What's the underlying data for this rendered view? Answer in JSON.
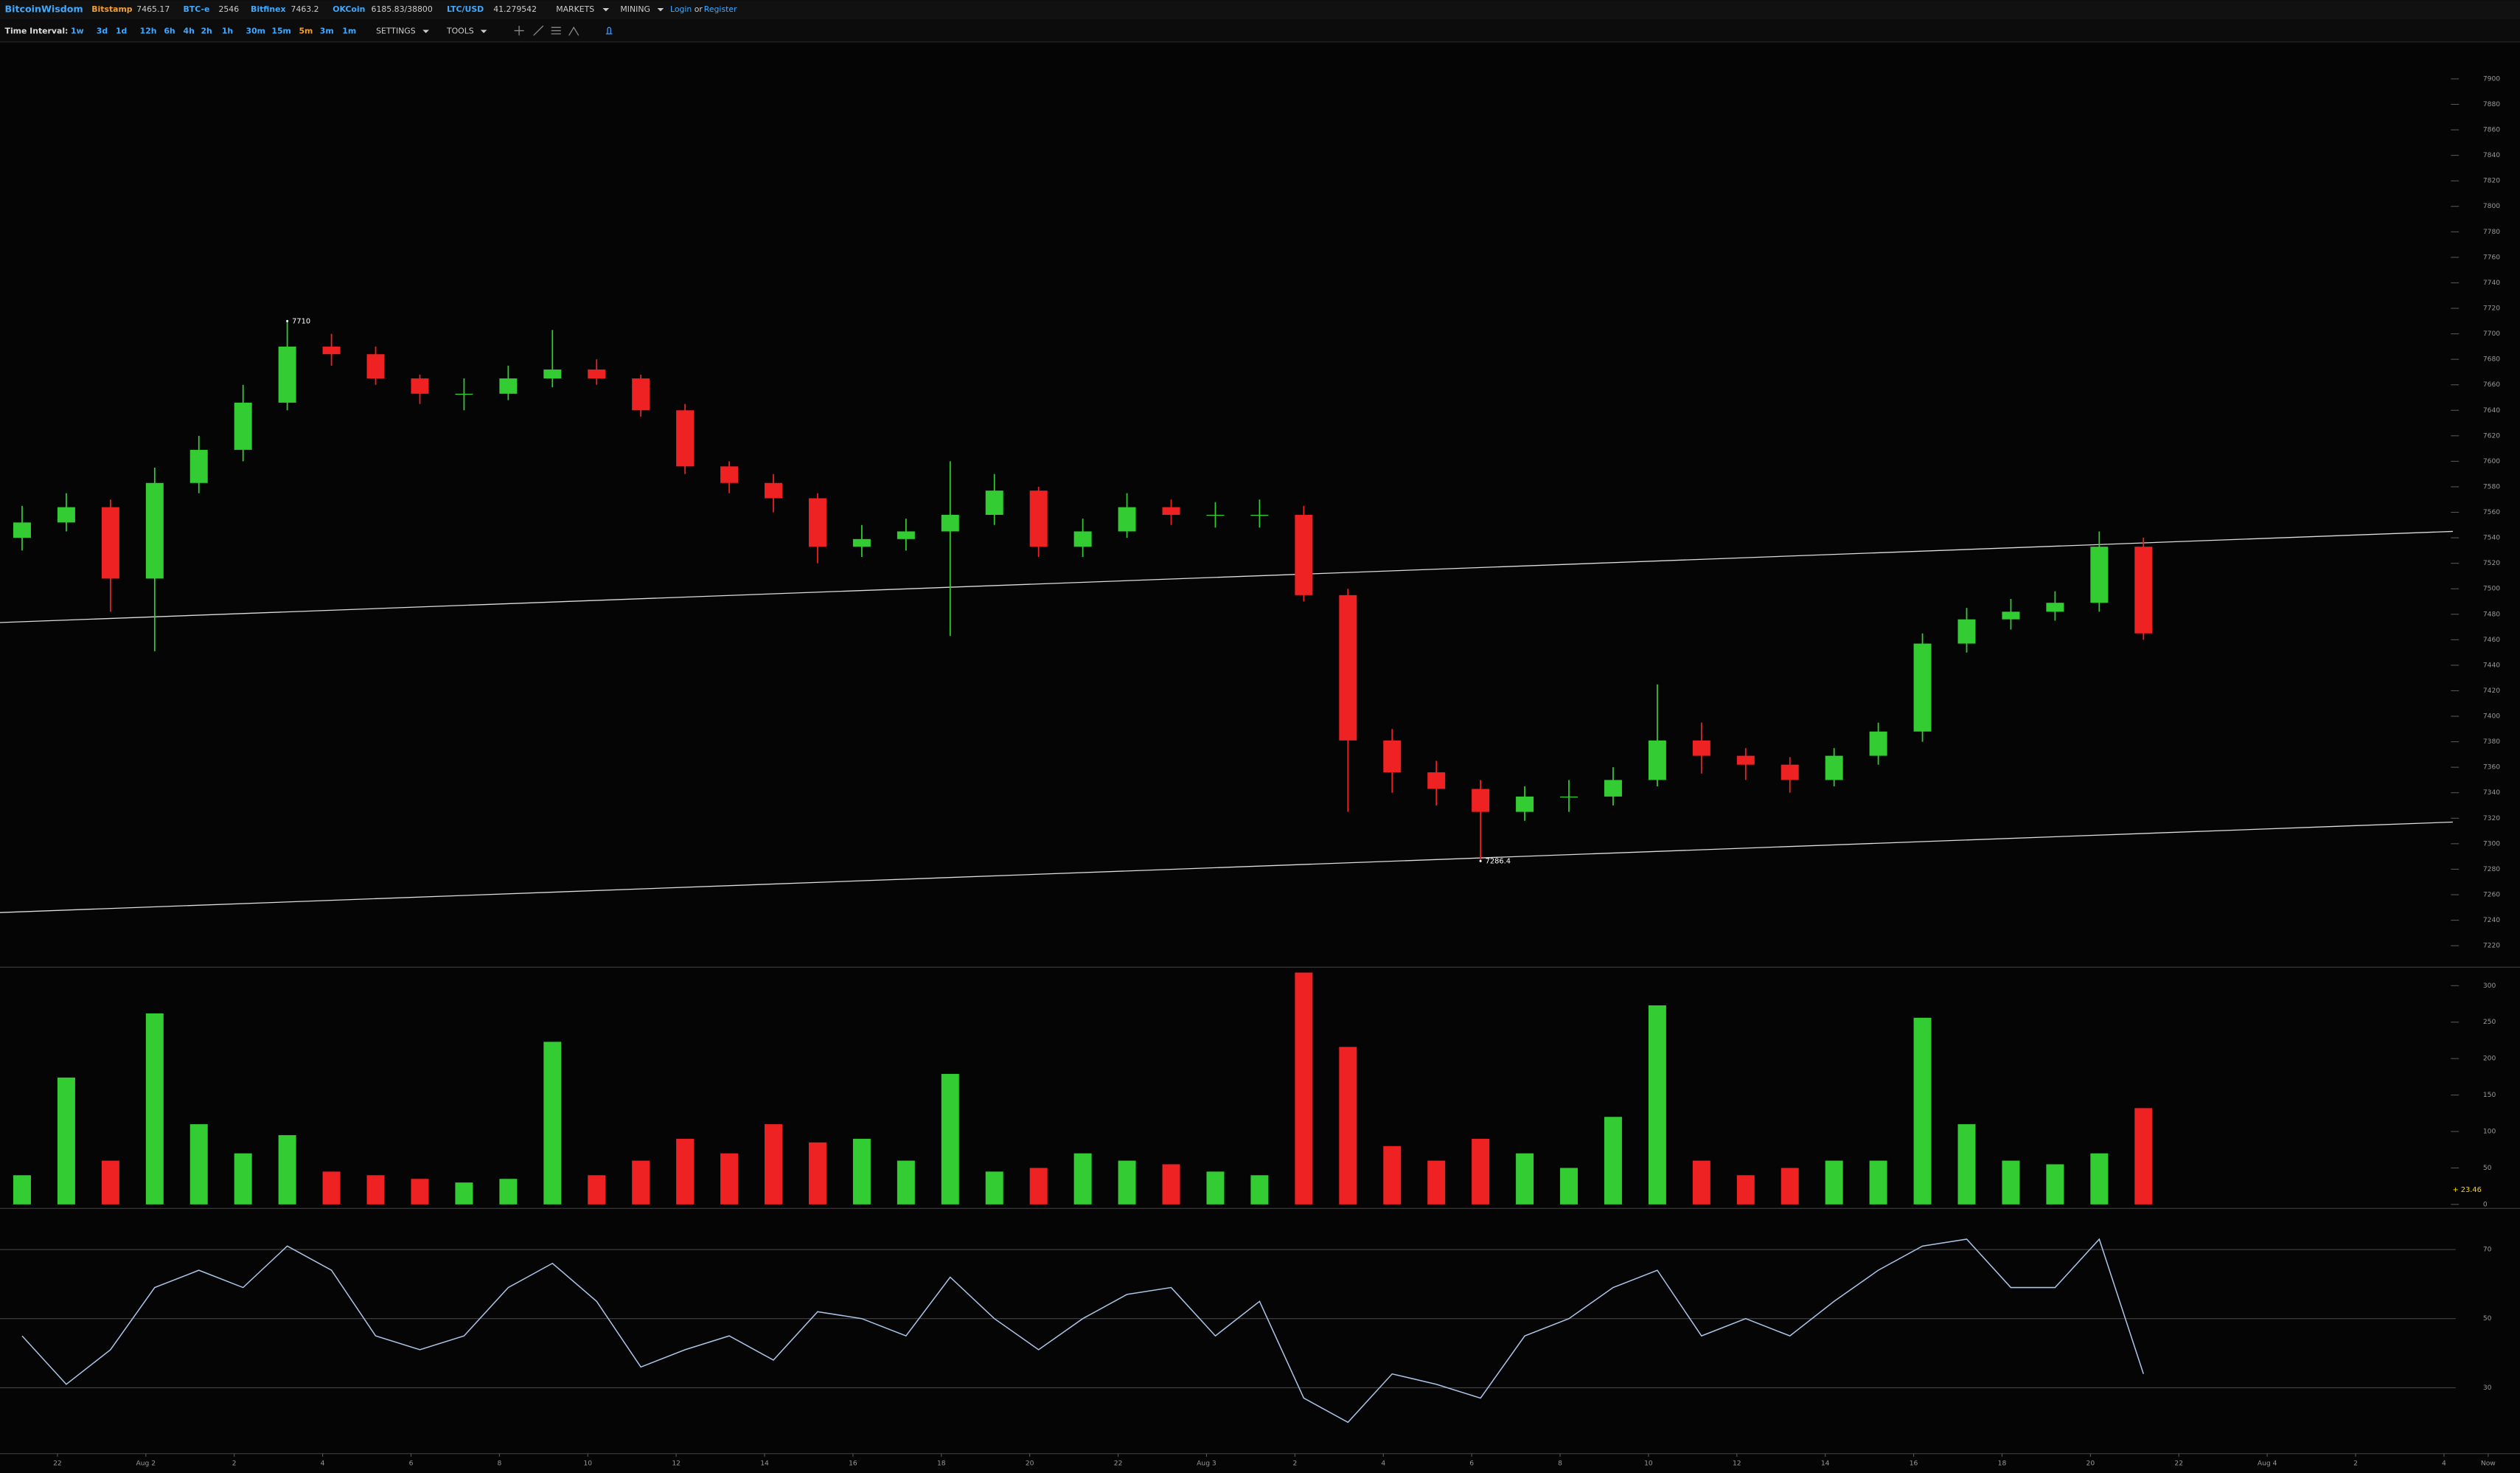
{
  "header": {
    "brand": "BitcoinWisdom",
    "tickers": [
      {
        "name": "Bitstamp",
        "price": "7465.17"
      },
      {
        "name": "BTC-e",
        "price": "2546"
      },
      {
        "name": "Bitfinex",
        "price": "7463.2"
      },
      {
        "name": "OKCoin",
        "price": "6185.83/38800"
      },
      {
        "name": "LTC/USD",
        "price": "41.279542"
      }
    ],
    "menu": [
      "MARKETS",
      "MINING"
    ],
    "login": "Login",
    "or": "or",
    "register": "Register"
  },
  "toolbar": {
    "label": "Time Interval:",
    "intervals": [
      "1w",
      "3d",
      "1d",
      "12h",
      "6h",
      "4h",
      "2h",
      "1h",
      "30m",
      "15m",
      "5m",
      "3m",
      "1m"
    ],
    "active": "5m",
    "settings": "SETTINGS",
    "tools": "TOOLS"
  },
  "chart_data": [
    {
      "type": "candlestick",
      "x": [
        0.5,
        1.5,
        2.5,
        3.5,
        4.5,
        5.5,
        6.5,
        7.5,
        8.5,
        9.5,
        10.5,
        11.5,
        12.5,
        13.5,
        14.5,
        15.5,
        16.5,
        17.5,
        18.5,
        19.5,
        20.5,
        21.5,
        22.5,
        23.5,
        24.5,
        25.5,
        26.5,
        27.5,
        28.5,
        29.5,
        30.5,
        31.5,
        32.5,
        33.5,
        34.5,
        35.5,
        36.5,
        37.5,
        38.5,
        39.5,
        40.5,
        41.5,
        42.5,
        43.5,
        44.5,
        45.5,
        46.5,
        47.5,
        48.5
      ],
      "open": [
        7540,
        7552,
        7564,
        7508,
        7583,
        7609,
        7646,
        7690,
        7684,
        7665,
        7653,
        7653,
        7665,
        7672,
        7665,
        7640,
        7596,
        7583,
        7571,
        7533,
        7539,
        7545,
        7558,
        7577,
        7533,
        7545,
        7564,
        7558,
        7558,
        7558,
        7495,
        7381,
        7356,
        7343,
        7325,
        7337,
        7337,
        7350,
        7381,
        7369,
        7362,
        7350,
        7369,
        7388,
        7457,
        7476,
        7482,
        7489,
        7533
      ],
      "high": [
        7565,
        7575,
        7570,
        7595,
        7620,
        7660,
        7710,
        7700,
        7690,
        7668,
        7665,
        7675,
        7703,
        7680,
        7668,
        7645,
        7600,
        7590,
        7575,
        7550,
        7555,
        7600,
        7590,
        7580,
        7555,
        7575,
        7570,
        7568,
        7570,
        7565,
        7500,
        7390,
        7365,
        7350,
        7345,
        7350,
        7360,
        7425,
        7395,
        7375,
        7368,
        7375,
        7395,
        7465,
        7485,
        7492,
        7498,
        7545,
        7540
      ],
      "low": [
        7530,
        7545,
        7482,
        7451,
        7575,
        7600,
        7640,
        7675,
        7660,
        7645,
        7640,
        7648,
        7658,
        7660,
        7635,
        7590,
        7575,
        7560,
        7520,
        7525,
        7530,
        7463,
        7550,
        7525,
        7525,
        7540,
        7550,
        7548,
        7548,
        7490,
        7325,
        7340,
        7330,
        7286.4,
        7318,
        7325,
        7330,
        7345,
        7355,
        7350,
        7340,
        7345,
        7362,
        7380,
        7450,
        7468,
        7475,
        7482,
        7460
      ],
      "close": [
        7552,
        7564,
        7508,
        7583,
        7609,
        7646,
        7690,
        7684,
        7665,
        7653,
        7653,
        7665,
        7672,
        7665,
        7640,
        7596,
        7583,
        7571,
        7533,
        7539,
        7545,
        7558,
        7577,
        7533,
        7545,
        7564,
        7558,
        7558,
        7558,
        7495,
        7381,
        7356,
        7343,
        7325,
        7337,
        7337,
        7350,
        7381,
        7369,
        7362,
        7350,
        7369,
        7388,
        7457,
        7476,
        7482,
        7489,
        7533,
        7465
      ],
      "up_color": "#33cc33",
      "down_color": "#ee2222",
      "ylim": [
        7205,
        7929
      ],
      "yticks": [
        7220,
        7240,
        7260,
        7280,
        7300,
        7320,
        7340,
        7360,
        7380,
        7400,
        7420,
        7440,
        7460,
        7480,
        7500,
        7520,
        7540,
        7560,
        7580,
        7600,
        7620,
        7640,
        7660,
        7680,
        7700,
        7720,
        7740,
        7760,
        7780,
        7800,
        7820,
        7840,
        7860,
        7880,
        7900
      ],
      "annotations": [
        {
          "text": "7710",
          "x": 6.5,
          "y": 7710
        },
        {
          "text": "7286.4",
          "x": 33.5,
          "y": 7286.4
        }
      ],
      "trendlines": [
        {
          "x": [
            0,
            55.5
          ],
          "y": [
            7473.5,
            7545
          ]
        },
        {
          "x": [
            0,
            55.5
          ],
          "y": [
            7246,
            7317
          ]
        }
      ]
    },
    {
      "type": "bar",
      "values": [
        40,
        174,
        60,
        262,
        110,
        70,
        95,
        45,
        40,
        35,
        30,
        35,
        223,
        40,
        60,
        90,
        70,
        110,
        85,
        90,
        60,
        179,
        45,
        50,
        70,
        60,
        55,
        45,
        40,
        318,
        216,
        80,
        60,
        90,
        70,
        50,
        120,
        273,
        60,
        40,
        50,
        60,
        60,
        256,
        110,
        60,
        55,
        70,
        132
      ],
      "ylim": [
        0,
        322
      ],
      "yticks": [
        0,
        50,
        100,
        150,
        200,
        250,
        300
      ],
      "current_label": "+ 23.46"
    },
    {
      "type": "line",
      "values": [
        45,
        31,
        41,
        59,
        64,
        59,
        71,
        64,
        45,
        41,
        45,
        59,
        66,
        55,
        36,
        41,
        45,
        38,
        52,
        50,
        45,
        62,
        50,
        41,
        50,
        57,
        59,
        45,
        55,
        27,
        20,
        34,
        31,
        27,
        45,
        50,
        59,
        64,
        45,
        50,
        45,
        55,
        64,
        71,
        73,
        59,
        59,
        73,
        34
      ],
      "color": "#a9c4e6",
      "ylim": [
        11.4,
        81.2
      ],
      "yticks": [
        30,
        50,
        70
      ],
      "xlim": [
        0,
        57.02
      ],
      "xticks": [
        {
          "value": 1.3,
          "label": "22"
        },
        {
          "value": 3.3,
          "label": "Aug 2"
        },
        {
          "value": 5.3,
          "label": "2"
        },
        {
          "value": 7.3,
          "label": "4"
        },
        {
          "value": 9.3,
          "label": "6"
        },
        {
          "value": 11.3,
          "label": "8"
        },
        {
          "value": 13.3,
          "label": "10"
        },
        {
          "value": 15.3,
          "label": "12"
        },
        {
          "value": 17.3,
          "label": "14"
        },
        {
          "value": 19.3,
          "label": "16"
        },
        {
          "value": 21.3,
          "label": "18"
        },
        {
          "value": 23.3,
          "label": "20"
        },
        {
          "value": 25.3,
          "label": "22"
        },
        {
          "value": 27.3,
          "label": "Aug 3"
        },
        {
          "value": 29.3,
          "label": "2"
        },
        {
          "value": 31.3,
          "label": "4"
        },
        {
          "value": 33.3,
          "label": "6"
        },
        {
          "value": 35.3,
          "label": "8"
        },
        {
          "value": 37.3,
          "label": "10"
        },
        {
          "value": 39.3,
          "label": "12"
        },
        {
          "value": 41.3,
          "label": "14"
        },
        {
          "value": 43.3,
          "label": "16"
        },
        {
          "value": 45.3,
          "label": "18"
        },
        {
          "value": 47.3,
          "label": "20"
        },
        {
          "value": 49.3,
          "label": "22"
        },
        {
          "value": 51.3,
          "label": "Aug 4"
        },
        {
          "value": 53.3,
          "label": "2"
        },
        {
          "value": 55.3,
          "label": "4"
        },
        {
          "value": 56.3,
          "label": "Now"
        }
      ]
    }
  ]
}
